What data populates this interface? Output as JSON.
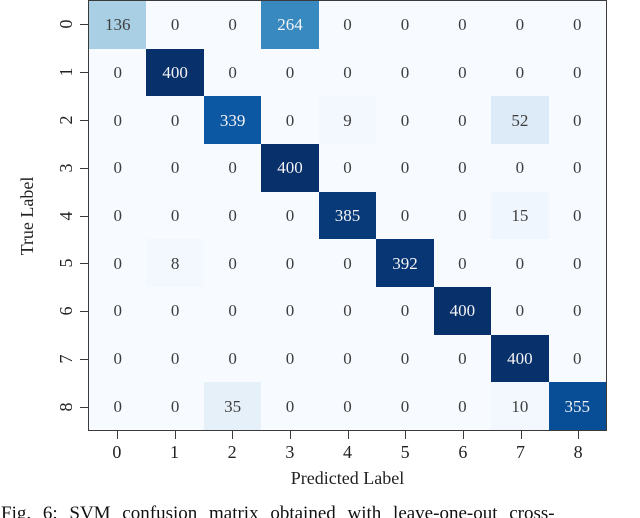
{
  "caption": "Fig. 6: SVM confusion matrix obtained with leave-one-out cross-",
  "colors": {
    "background": "#ffffff",
    "axis": "#3a3a3a",
    "cell_text_dark": "#3d3d3d",
    "cell_text_light": "#f5f5f5"
  },
  "chart_data": {
    "type": "heatmap",
    "title": "",
    "xlabel": "Predicted Label",
    "ylabel": "True Label",
    "x_categories": [
      "0",
      "1",
      "2",
      "3",
      "4",
      "5",
      "6",
      "7",
      "8"
    ],
    "y_categories": [
      "0",
      "1",
      "2",
      "3",
      "4",
      "5",
      "6",
      "7",
      "8"
    ],
    "matrix": [
      [
        136,
        0,
        0,
        264,
        0,
        0,
        0,
        0,
        0
      ],
      [
        0,
        400,
        0,
        0,
        0,
        0,
        0,
        0,
        0
      ],
      [
        0,
        0,
        339,
        0,
        9,
        0,
        0,
        52,
        0
      ],
      [
        0,
        0,
        0,
        400,
        0,
        0,
        0,
        0,
        0
      ],
      [
        0,
        0,
        0,
        0,
        385,
        0,
        0,
        15,
        0
      ],
      [
        0,
        8,
        0,
        0,
        0,
        392,
        0,
        0,
        0
      ],
      [
        0,
        0,
        0,
        0,
        0,
        0,
        400,
        0,
        0
      ],
      [
        0,
        0,
        0,
        0,
        0,
        0,
        0,
        400,
        0
      ],
      [
        0,
        0,
        35,
        0,
        0,
        0,
        0,
        10,
        355
      ]
    ],
    "vmin": 0,
    "vmax": 400,
    "colormap": "Blues",
    "colormap_stops": [
      [
        0.0,
        "#f7fbff"
      ],
      [
        0.125,
        "#deebf7"
      ],
      [
        0.25,
        "#c6dbef"
      ],
      [
        0.375,
        "#9ecae1"
      ],
      [
        0.5,
        "#6baed6"
      ],
      [
        0.625,
        "#4292c6"
      ],
      [
        0.75,
        "#2171b5"
      ],
      [
        0.875,
        "#08519c"
      ],
      [
        1.0,
        "#08306b"
      ]
    ],
    "grid": false,
    "legend": "none"
  }
}
